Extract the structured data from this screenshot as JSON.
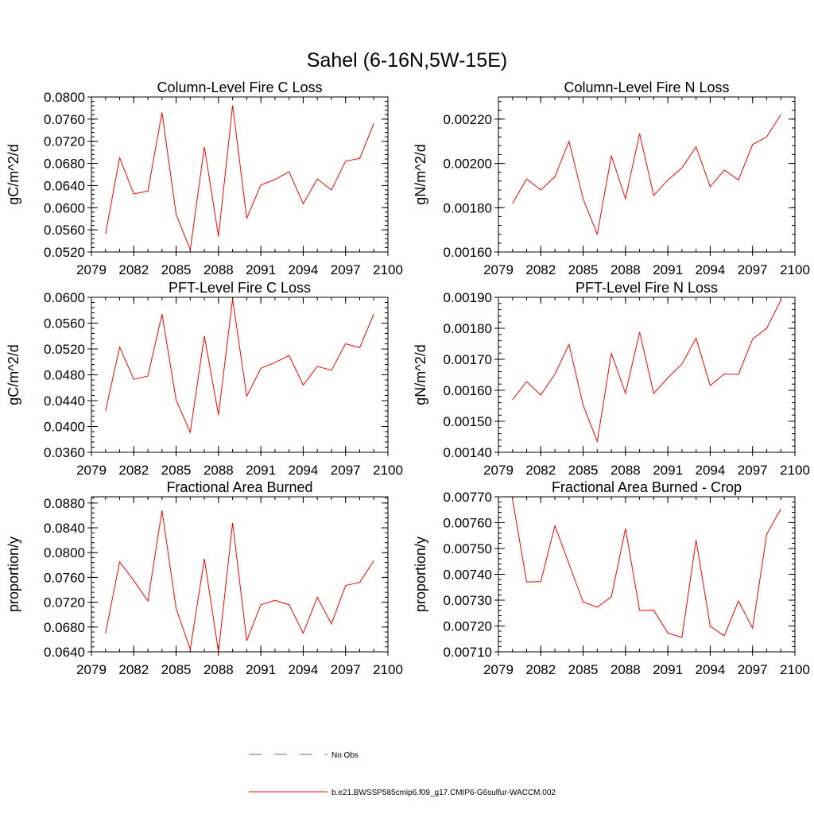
{
  "figure": {
    "title": "Sahel (6-16N,5W-15E)",
    "legend": {
      "no_obs_label": "No Obs",
      "model_label": "b.e21.BWSSP585cmip6.f09_g17.CMIP6-G6sulfur-WACCM.002",
      "model_color": "#ff0000",
      "no_obs_color": "#6666aa"
    }
  },
  "chart_data": [
    {
      "type": "line",
      "title": "Column-Level Fire C Loss",
      "ylabel": "gC/m^2/d",
      "xlim": [
        2079,
        2100
      ],
      "ylim": [
        0.052,
        0.08
      ],
      "xticks": [
        "2079",
        "2082",
        "2085",
        "2088",
        "2091",
        "2094",
        "2097",
        "2100"
      ],
      "yticks": [
        "0.0520",
        "0.0560",
        "0.0600",
        "0.0640",
        "0.0680",
        "0.0720",
        "0.0760",
        "0.0800"
      ],
      "x": [
        2080,
        2081,
        2082,
        2083,
        2084,
        2085,
        2086,
        2087,
        2088,
        2089,
        2090,
        2091,
        2092,
        2093,
        2094,
        2095,
        2096,
        2097,
        2098,
        2099
      ],
      "series": [
        {
          "name": "b.e21.BWSSP585cmip6.f09_g17.CMIP6-G6sulfur-WACCM.002",
          "color": "#ff0000",
          "values": [
            0.0553,
            0.069,
            0.0625,
            0.063,
            0.0772,
            0.0588,
            0.0524,
            0.071,
            0.0548,
            0.0785,
            0.0581,
            0.0641,
            0.0651,
            0.0665,
            0.0607,
            0.0652,
            0.0632,
            0.0684,
            0.0689,
            0.0752
          ]
        }
      ]
    },
    {
      "type": "line",
      "title": "Column-Level Fire N Loss",
      "ylabel": "gN/m^2/d",
      "xlim": [
        2079,
        2100
      ],
      "ylim": [
        0.0016,
        0.0023
      ],
      "xticks": [
        "2079",
        "2082",
        "2085",
        "2088",
        "2091",
        "2094",
        "2097",
        "2100"
      ],
      "yticks": [
        "0.00160",
        "0.00180",
        "0.00200",
        "0.00220"
      ],
      "x": [
        2080,
        2081,
        2082,
        2083,
        2084,
        2085,
        2086,
        2087,
        2088,
        2089,
        2090,
        2091,
        2092,
        2093,
        2094,
        2095,
        2096,
        2097,
        2098,
        2099
      ],
      "series": [
        {
          "name": "b.e21.BWSSP585cmip6.f09_g17.CMIP6-G6sulfur-WACCM.002",
          "color": "#ff0000",
          "values": [
            0.00182,
            0.00193,
            0.00188,
            0.00194,
            0.0021,
            0.00184,
            0.00168,
            0.002035,
            0.00184,
            0.002135,
            0.001855,
            0.001925,
            0.00198,
            0.002075,
            0.001895,
            0.00197,
            0.001925,
            0.002085,
            0.00212,
            0.00222
          ]
        }
      ]
    },
    {
      "type": "line",
      "title": "PFT-Level Fire C Loss",
      "ylabel": "gC/m^2/d",
      "xlim": [
        2079,
        2100
      ],
      "ylim": [
        0.036,
        0.06
      ],
      "xticks": [
        "2079",
        "2082",
        "2085",
        "2088",
        "2091",
        "2094",
        "2097",
        "2100"
      ],
      "yticks": [
        "0.0360",
        "0.0400",
        "0.0440",
        "0.0480",
        "0.0520",
        "0.0560",
        "0.0600"
      ],
      "x": [
        2080,
        2081,
        2082,
        2083,
        2084,
        2085,
        2086,
        2087,
        2088,
        2089,
        2090,
        2091,
        2092,
        2093,
        2094,
        2095,
        2096,
        2097,
        2098,
        2099
      ],
      "series": [
        {
          "name": "b.e21.BWSSP585cmip6.f09_g17.CMIP6-G6sulfur-WACCM.002",
          "color": "#ff0000",
          "values": [
            0.0424,
            0.0523,
            0.0473,
            0.0478,
            0.0574,
            0.0441,
            0.0391,
            0.054,
            0.0418,
            0.0597,
            0.0447,
            0.049,
            0.0499,
            0.051,
            0.0464,
            0.0493,
            0.0487,
            0.0528,
            0.0522,
            0.0574
          ]
        }
      ]
    },
    {
      "type": "line",
      "title": "PFT-Level Fire N Loss",
      "ylabel": "gN/m^2/d",
      "xlim": [
        2079,
        2100
      ],
      "ylim": [
        0.0014,
        0.0019
      ],
      "xticks": [
        "2079",
        "2082",
        "2085",
        "2088",
        "2091",
        "2094",
        "2097",
        "2100"
      ],
      "yticks": [
        "0.00140",
        "0.00150",
        "0.00160",
        "0.00170",
        "0.00180",
        "0.00190"
      ],
      "x": [
        2080,
        2081,
        2082,
        2083,
        2084,
        2085,
        2086,
        2087,
        2088,
        2089,
        2090,
        2091,
        2092,
        2093,
        2094,
        2095,
        2096,
        2097,
        2098,
        2099
      ],
      "series": [
        {
          "name": "b.e21.BWSSP585cmip6.f09_g17.CMIP6-G6sulfur-WACCM.002",
          "color": "#ff0000",
          "values": [
            0.00157,
            0.001628,
            0.001585,
            0.001652,
            0.001748,
            0.001552,
            0.001435,
            0.00172,
            0.00159,
            0.001788,
            0.00159,
            0.00164,
            0.001685,
            0.001768,
            0.001615,
            0.001653,
            0.001651,
            0.001765,
            0.0018,
            0.00189
          ]
        }
      ]
    },
    {
      "type": "line",
      "title": "Fractional Area Burned",
      "ylabel": "proportion/y",
      "xlim": [
        2079,
        2100
      ],
      "ylim": [
        0.064,
        0.089
      ],
      "xticks": [
        "2079",
        "2082",
        "2085",
        "2088",
        "2091",
        "2094",
        "2097",
        "2100"
      ],
      "yticks": [
        "0.0640",
        "0.0680",
        "0.0720",
        "0.0760",
        "0.0800",
        "0.0840",
        "0.0880"
      ],
      "x": [
        2080,
        2081,
        2082,
        2083,
        2084,
        2085,
        2086,
        2087,
        2088,
        2089,
        2090,
        2091,
        2092,
        2093,
        2094,
        2095,
        2096,
        2097,
        2098,
        2099
      ],
      "series": [
        {
          "name": "b.e21.BWSSP585cmip6.f09_g17.CMIP6-G6sulfur-WACCM.002",
          "color": "#ff0000",
          "values": [
            0.067,
            0.0785,
            0.0755,
            0.0722,
            0.0868,
            0.071,
            0.0644,
            0.079,
            0.064,
            0.0848,
            0.0658,
            0.0716,
            0.0723,
            0.0716,
            0.067,
            0.0728,
            0.0685,
            0.0747,
            0.0752,
            0.0787
          ]
        }
      ]
    },
    {
      "type": "line",
      "title": "Fractional Area Burned - Crop",
      "ylabel": "proportion/y",
      "xlim": [
        2079,
        2100
      ],
      "ylim": [
        0.0071,
        0.0077
      ],
      "xticks": [
        "2079",
        "2082",
        "2085",
        "2088",
        "2091",
        "2094",
        "2097",
        "2100"
      ],
      "yticks": [
        "0.00710",
        "0.00720",
        "0.00730",
        "0.00740",
        "0.00750",
        "0.00760",
        "0.00770"
      ],
      "x": [
        2080,
        2081,
        2082,
        2083,
        2084,
        2085,
        2086,
        2087,
        2088,
        2089,
        2090,
        2091,
        2092,
        2093,
        2094,
        2095,
        2096,
        2097,
        2098,
        2099
      ],
      "series": [
        {
          "name": "b.e21.BWSSP585cmip6.f09_g17.CMIP6-G6sulfur-WACCM.002",
          "color": "#ff0000",
          "values": [
            0.00769,
            0.00737,
            0.007372,
            0.007588,
            0.00744,
            0.007293,
            0.007273,
            0.007313,
            0.007577,
            0.00726,
            0.007261,
            0.007173,
            0.007156,
            0.007533,
            0.007199,
            0.007162,
            0.007297,
            0.007192,
            0.007555,
            0.007653
          ]
        }
      ]
    }
  ]
}
